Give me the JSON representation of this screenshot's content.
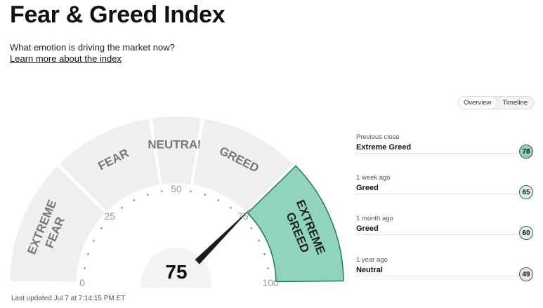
{
  "header": {
    "title": "Fear & Greed Index",
    "subtitle": "What emotion is driving the market now?",
    "learn_more": "Learn more about the index"
  },
  "toggle": {
    "options": [
      "Overview",
      "Timeline"
    ],
    "selected": "Overview"
  },
  "gauge": {
    "value": 75,
    "value_label": "75",
    "min": 0,
    "max": 100,
    "ticks": [
      "0",
      "25",
      "50",
      "75",
      "100"
    ],
    "segments": [
      {
        "label_lines": [
          "EXTREME",
          "FEAR"
        ],
        "from": 0,
        "to": 25
      },
      {
        "label_lines": [
          "FEAR"
        ],
        "from": 25,
        "to": 45
      },
      {
        "label_lines": [
          "NEUTRAL"
        ],
        "from": 45,
        "to": 55
      },
      {
        "label_lines": [
          "GREED"
        ],
        "from": 55,
        "to": 75
      },
      {
        "label_lines": [
          "EXTREME",
          "GREED"
        ],
        "from": 75,
        "to": 100
      }
    ],
    "active_segment": 4,
    "colors": {
      "segment": "#efefef",
      "active": "#8fd4bb",
      "active_border": "#1f7a5c",
      "needle": "#1a1a1a",
      "text": "#777777",
      "active_text": "#222222"
    }
  },
  "history": [
    {
      "label": "Previous close",
      "value": "Extreme Greed",
      "score": "78",
      "color": "#8fd4bb"
    },
    {
      "label": "1 week ago",
      "value": "Greed",
      "score": "65",
      "color": "#d9f1e8"
    },
    {
      "label": "1 month ago",
      "value": "Greed",
      "score": "60",
      "color": "#d9f1e8"
    },
    {
      "label": "1 year ago",
      "value": "Neutral",
      "score": "49",
      "color": "#e6e6e6"
    }
  ],
  "footer": {
    "last_updated": "Last updated Jul 7 at 7:14:15 PM ET"
  }
}
